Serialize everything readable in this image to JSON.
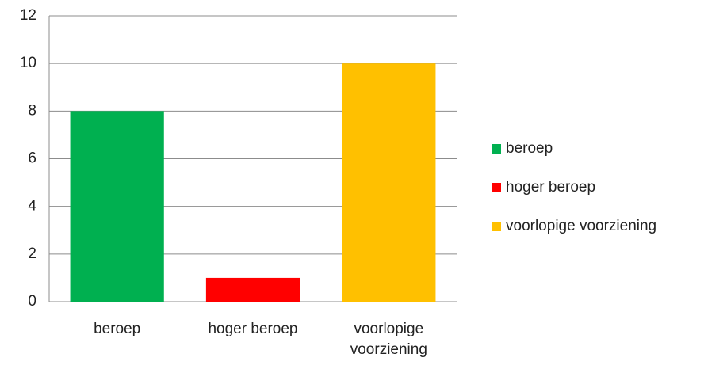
{
  "chart_data": {
    "type": "bar",
    "categories": [
      "beroep",
      "hoger beroep",
      "voorlopige voorziening"
    ],
    "values": [
      8,
      1,
      10
    ],
    "colors": [
      "#00b050",
      "#ff0000",
      "#ffc000"
    ],
    "ylim": [
      0,
      12
    ],
    "yticks": [
      0,
      2,
      4,
      6,
      8,
      10,
      12
    ],
    "grid": true,
    "legend": "right"
  }
}
